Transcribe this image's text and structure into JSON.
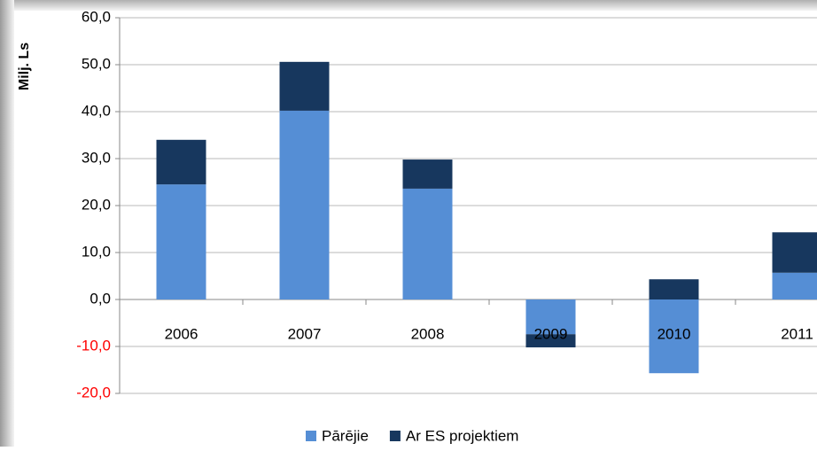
{
  "chart_data": {
    "type": "stacked_bar",
    "y_axis_label": "Milj. Ls",
    "categories": [
      "2006",
      "2007",
      "2008",
      "2009",
      "2010",
      "2011"
    ],
    "series": [
      {
        "name": "Pārējie",
        "color": "#558ed5",
        "values": [
          24.5,
          40.2,
          23.6,
          -7.4,
          -15.7,
          5.7
        ]
      },
      {
        "name": "Ar ES projektiem",
        "color": "#17375e",
        "values": [
          9.5,
          10.4,
          6.2,
          -2.8,
          4.3,
          8.6
        ]
      }
    ],
    "ylim": [
      -20,
      60
    ],
    "yticks": [
      {
        "value": -20,
        "label": "-20,0"
      },
      {
        "value": -10,
        "label": "-10,0"
      },
      {
        "value": 0,
        "label": "0,0"
      },
      {
        "value": 10,
        "label": "10,0"
      },
      {
        "value": 20,
        "label": "20,0"
      },
      {
        "value": 30,
        "label": "30,0"
      },
      {
        "value": 40,
        "label": "40,0"
      },
      {
        "value": 50,
        "label": "50,0"
      },
      {
        "value": 60,
        "label": "60,0"
      }
    ],
    "grid": true,
    "negative_tick_label_color": "#ff0000",
    "legend": "bottom"
  }
}
